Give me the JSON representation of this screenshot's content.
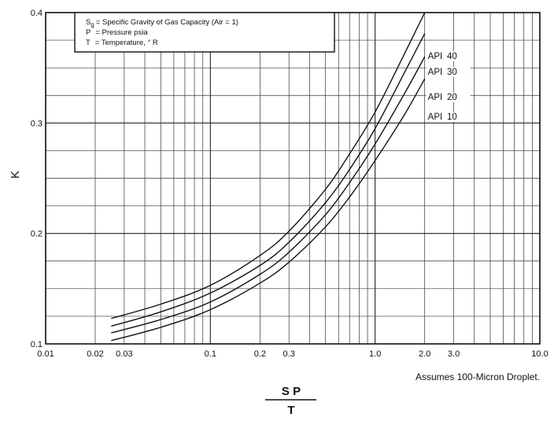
{
  "chart_data": {
    "type": "line",
    "x_scale": "log",
    "xlim": [
      0.01,
      10.0
    ],
    "ylim": [
      0.1,
      0.4
    ],
    "ylabel": "K",
    "xlabel_numerator": "S  P",
    "xlabel_denominator": "T",
    "grid": true,
    "x_tick_labels": [
      "0.01",
      "0.02",
      "0.03",
      "0.1",
      "0.2",
      "0.3",
      "1.0",
      "2.0",
      "3.0",
      "10.0"
    ],
    "x_ticks": [
      0.01,
      0.02,
      0.03,
      0.1,
      0.2,
      0.3,
      1.0,
      2.0,
      3.0,
      10.0
    ],
    "y_tick_labels": [
      "0.1",
      "0.2",
      "0.3",
      "0.4"
    ],
    "y_ticks": [
      0.1,
      0.2,
      0.3,
      0.4
    ],
    "legend": {
      "placement": "top-left",
      "lines": [
        {
          "symbol": "S",
          "subscript": "g",
          "text": "= Specific Gravity of Gas Capacity (Air = 1)"
        },
        {
          "symbol": "P",
          "subscript": "",
          "text": "= Pressure psia"
        },
        {
          "symbol": "T",
          "subscript": "",
          "text": "= Temperature, ° R"
        }
      ]
    },
    "note": "Assumes 100-Micron Droplet.",
    "series": [
      {
        "name": "API  40",
        "x": [
          0.025,
          0.05,
          0.1,
          0.2,
          0.3,
          0.5,
          0.7,
          1.0,
          1.5,
          2.0
        ],
        "y": [
          0.123,
          0.136,
          0.153,
          0.18,
          0.202,
          0.24,
          0.272,
          0.31,
          0.362,
          0.4
        ]
      },
      {
        "name": "API  30",
        "x": [
          0.025,
          0.05,
          0.1,
          0.2,
          0.3,
          0.5,
          0.7,
          1.0,
          1.5,
          2.0
        ],
        "y": [
          0.116,
          0.129,
          0.146,
          0.171,
          0.192,
          0.228,
          0.258,
          0.295,
          0.345,
          0.381
        ]
      },
      {
        "name": "API  20",
        "x": [
          0.025,
          0.05,
          0.1,
          0.2,
          0.3,
          0.5,
          0.7,
          1.0,
          1.5,
          2.0
        ],
        "y": [
          0.11,
          0.122,
          0.138,
          0.163,
          0.183,
          0.217,
          0.246,
          0.281,
          0.326,
          0.36
        ]
      },
      {
        "name": "API  10",
        "x": [
          0.025,
          0.05,
          0.1,
          0.2,
          0.3,
          0.5,
          0.7,
          1.0,
          1.5,
          2.0
        ],
        "y": [
          0.103,
          0.115,
          0.131,
          0.155,
          0.174,
          0.206,
          0.233,
          0.266,
          0.307,
          0.34
        ]
      }
    ]
  }
}
